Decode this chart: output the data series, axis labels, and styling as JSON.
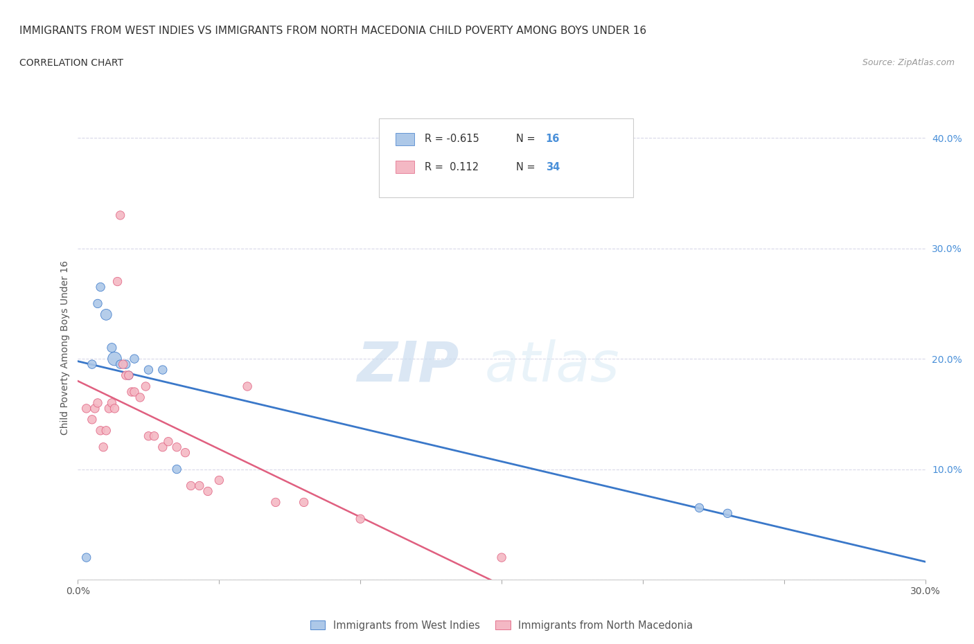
{
  "title": "IMMIGRANTS FROM WEST INDIES VS IMMIGRANTS FROM NORTH MACEDONIA CHILD POVERTY AMONG BOYS UNDER 16",
  "subtitle": "CORRELATION CHART",
  "source": "Source: ZipAtlas.com",
  "ylabel": "Child Poverty Among Boys Under 16",
  "watermark_zip": "ZIP",
  "watermark_atlas": "atlas",
  "xlim": [
    0.0,
    0.3
  ],
  "ylim": [
    0.0,
    0.42
  ],
  "xticks": [
    0.0,
    0.05,
    0.1,
    0.15,
    0.2,
    0.25,
    0.3
  ],
  "yticks": [
    0.0,
    0.1,
    0.2,
    0.3,
    0.4
  ],
  "blue_color": "#adc8e8",
  "pink_color": "#f4b8c4",
  "blue_line_color": "#3a78c9",
  "pink_line_color": "#e06080",
  "grid_color": "#d8d8e8",
  "legend_blue_label": "Immigrants from West Indies",
  "legend_pink_label": "Immigrants from North Macedonia",
  "R_blue": -0.615,
  "N_blue": 16,
  "R_pink": 0.112,
  "N_pink": 34,
  "blue_scatter_x": [
    0.003,
    0.005,
    0.007,
    0.008,
    0.01,
    0.012,
    0.013,
    0.015,
    0.017,
    0.02,
    0.025,
    0.03,
    0.22,
    0.23,
    0.035,
    0.018
  ],
  "blue_scatter_y": [
    0.02,
    0.195,
    0.25,
    0.265,
    0.24,
    0.21,
    0.2,
    0.195,
    0.195,
    0.2,
    0.19,
    0.19,
    0.065,
    0.06,
    0.1,
    0.185
  ],
  "blue_scatter_size": [
    80,
    80,
    80,
    80,
    130,
    90,
    200,
    80,
    80,
    80,
    80,
    80,
    80,
    80,
    80,
    80
  ],
  "pink_scatter_x": [
    0.003,
    0.005,
    0.006,
    0.007,
    0.008,
    0.009,
    0.01,
    0.011,
    0.012,
    0.013,
    0.014,
    0.015,
    0.016,
    0.017,
    0.018,
    0.019,
    0.02,
    0.022,
    0.024,
    0.025,
    0.027,
    0.03,
    0.032,
    0.035,
    0.038,
    0.04,
    0.043,
    0.046,
    0.05,
    0.06,
    0.07,
    0.08,
    0.1,
    0.15
  ],
  "pink_scatter_y": [
    0.155,
    0.145,
    0.155,
    0.16,
    0.135,
    0.12,
    0.135,
    0.155,
    0.16,
    0.155,
    0.27,
    0.33,
    0.195,
    0.185,
    0.185,
    0.17,
    0.17,
    0.165,
    0.175,
    0.13,
    0.13,
    0.12,
    0.125,
    0.12,
    0.115,
    0.085,
    0.085,
    0.08,
    0.09,
    0.175,
    0.07,
    0.07,
    0.055,
    0.02
  ],
  "pink_scatter_size": [
    80,
    80,
    80,
    80,
    80,
    80,
    80,
    80,
    80,
    80,
    80,
    80,
    80,
    80,
    80,
    80,
    80,
    80,
    80,
    80,
    80,
    80,
    80,
    80,
    80,
    80,
    80,
    80,
    80,
    80,
    80,
    80,
    80,
    80
  ]
}
